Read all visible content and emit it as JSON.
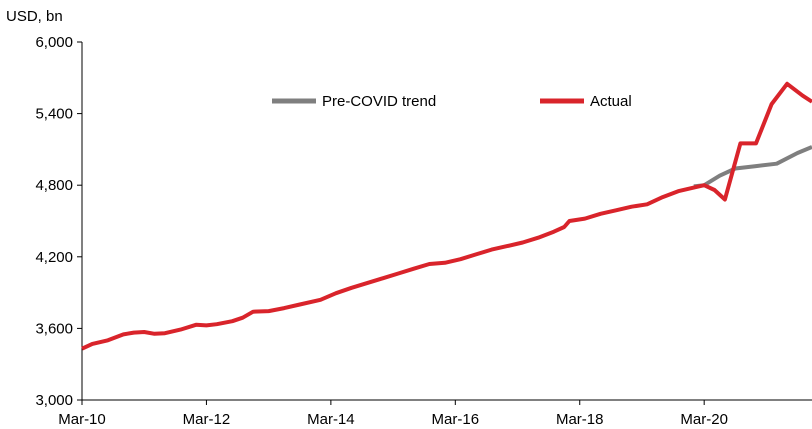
{
  "chart_data": {
    "type": "line",
    "unit_label": "USD, bn",
    "xlabel": "",
    "ylabel": "",
    "ylim": [
      3000,
      6000
    ],
    "y_ticks": [
      3000,
      3600,
      4200,
      4800,
      5400,
      6000
    ],
    "y_tick_labels": [
      "3,000",
      "3,600",
      "4,200",
      "4,800",
      "5,400",
      "6,000"
    ],
    "x_start": 2010.167,
    "x_end": 2021.9,
    "x_ticks": [
      2010.167,
      2012.167,
      2014.167,
      2016.167,
      2018.167,
      2020.167
    ],
    "x_tick_labels": [
      "Mar-10",
      "Mar-12",
      "Mar-14",
      "Mar-16",
      "Mar-18",
      "Mar-20"
    ],
    "grid": false,
    "legend_position": "top-center",
    "series": [
      {
        "name": "Pre-COVID trend",
        "color": "#7f7f7f",
        "points": [
          [
            2020.0,
            4790
          ],
          [
            2020.167,
            4800
          ],
          [
            2020.417,
            4880
          ],
          [
            2020.667,
            4940
          ],
          [
            2021.0,
            4960
          ],
          [
            2021.333,
            4980
          ],
          [
            2021.667,
            5070
          ],
          [
            2021.9,
            5120
          ]
        ]
      },
      {
        "name": "Actual",
        "color": "#d9242b",
        "points": [
          [
            2010.167,
            3430
          ],
          [
            2010.333,
            3470
          ],
          [
            2010.583,
            3500
          ],
          [
            2010.833,
            3550
          ],
          [
            2011.0,
            3565
          ],
          [
            2011.167,
            3570
          ],
          [
            2011.333,
            3555
          ],
          [
            2011.5,
            3560
          ],
          [
            2011.75,
            3590
          ],
          [
            2012.0,
            3630
          ],
          [
            2012.167,
            3625
          ],
          [
            2012.333,
            3635
          ],
          [
            2012.583,
            3660
          ],
          [
            2012.75,
            3690
          ],
          [
            2012.917,
            3740
          ],
          [
            2013.167,
            3745
          ],
          [
            2013.417,
            3770
          ],
          [
            2013.667,
            3800
          ],
          [
            2014.0,
            3840
          ],
          [
            2014.25,
            3895
          ],
          [
            2014.5,
            3940
          ],
          [
            2014.75,
            3980
          ],
          [
            2015.0,
            4020
          ],
          [
            2015.25,
            4060
          ],
          [
            2015.5,
            4100
          ],
          [
            2015.75,
            4140
          ],
          [
            2016.0,
            4150
          ],
          [
            2016.25,
            4180
          ],
          [
            2016.5,
            4220
          ],
          [
            2016.75,
            4260
          ],
          [
            2017.0,
            4290
          ],
          [
            2017.25,
            4320
          ],
          [
            2017.5,
            4360
          ],
          [
            2017.75,
            4410
          ],
          [
            2017.917,
            4450
          ],
          [
            2018.0,
            4500
          ],
          [
            2018.25,
            4520
          ],
          [
            2018.5,
            4560
          ],
          [
            2018.75,
            4590
          ],
          [
            2019.0,
            4620
          ],
          [
            2019.25,
            4640
          ],
          [
            2019.5,
            4700
          ],
          [
            2019.75,
            4750
          ],
          [
            2020.0,
            4780
          ],
          [
            2020.167,
            4800
          ],
          [
            2020.333,
            4760
          ],
          [
            2020.5,
            4680
          ],
          [
            2020.75,
            5150
          ],
          [
            2021.0,
            5150
          ],
          [
            2021.25,
            5480
          ],
          [
            2021.5,
            5650
          ],
          [
            2021.75,
            5550
          ],
          [
            2021.9,
            5500
          ]
        ]
      }
    ]
  }
}
